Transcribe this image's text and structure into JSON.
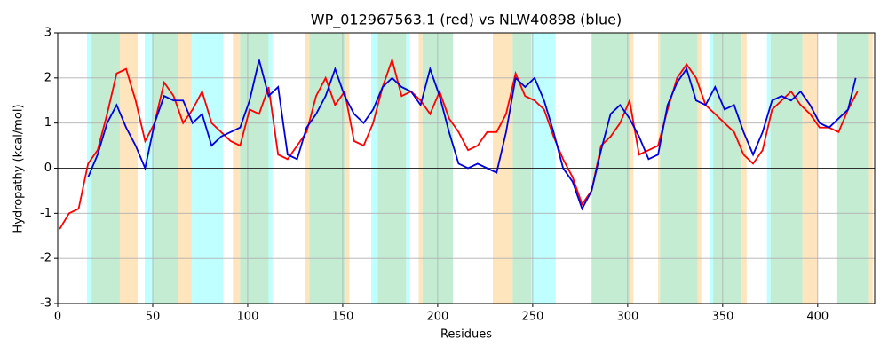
{
  "chart_data": {
    "type": "line",
    "title": "WP_012967563.1 (red) vs NLW40898 (blue)",
    "xlabel": "Residues",
    "ylabel": "Hydropathy (kcal/mol)",
    "xlim": [
      0,
      430
    ],
    "ylim": [
      -3,
      3
    ],
    "xticks": [
      0,
      50,
      100,
      150,
      200,
      250,
      300,
      350,
      400
    ],
    "yticks": [
      -3,
      -2,
      -1,
      0,
      1,
      2,
      3
    ],
    "grid": true,
    "spans": [
      {
        "start": 15.4,
        "end": 17.8,
        "color": "#bfffff"
      },
      {
        "start": 17.8,
        "end": 32.7,
        "color": "#c3ecd2"
      },
      {
        "start": 32.7,
        "end": 42.1,
        "color": "#ffe5bd"
      },
      {
        "start": 45.8,
        "end": 50,
        "color": "#bfffff"
      },
      {
        "start": 50,
        "end": 63.2,
        "color": "#c3ecd2"
      },
      {
        "start": 63.2,
        "end": 70.6,
        "color": "#ffe5bd"
      },
      {
        "start": 70.6,
        "end": 87,
        "color": "#bfffff"
      },
      {
        "start": 92.2,
        "end": 96,
        "color": "#ffe5bd"
      },
      {
        "start": 96,
        "end": 111,
        "color": "#c3ecd2"
      },
      {
        "start": 111,
        "end": 113,
        "color": "#bfffff"
      },
      {
        "start": 130,
        "end": 132.4,
        "color": "#ffe5bd"
      },
      {
        "start": 132.4,
        "end": 151,
        "color": "#c3ecd2"
      },
      {
        "start": 151,
        "end": 153.5,
        "color": "#ffe5bd"
      },
      {
        "start": 165,
        "end": 168.4,
        "color": "#bfffff"
      },
      {
        "start": 168.4,
        "end": 183.4,
        "color": "#c3ecd2"
      },
      {
        "start": 183.4,
        "end": 185.3,
        "color": "#bfffff"
      },
      {
        "start": 190,
        "end": 192,
        "color": "#ffe5bd"
      },
      {
        "start": 192,
        "end": 208,
        "color": "#c3ecd2"
      },
      {
        "start": 229,
        "end": 239.5,
        "color": "#ffe5bd"
      },
      {
        "start": 239.5,
        "end": 249.3,
        "color": "#c3ecd2"
      },
      {
        "start": 249.3,
        "end": 262,
        "color": "#bfffff"
      },
      {
        "start": 281,
        "end": 301,
        "color": "#c3ecd2"
      },
      {
        "start": 301,
        "end": 303,
        "color": "#ffe5bd"
      },
      {
        "start": 316,
        "end": 317,
        "color": "#ffe5bd"
      },
      {
        "start": 317,
        "end": 336.8,
        "color": "#c3ecd2"
      },
      {
        "start": 336.8,
        "end": 338.7,
        "color": "#ffe5bd"
      },
      {
        "start": 343,
        "end": 345,
        "color": "#bfffff"
      },
      {
        "start": 345,
        "end": 360,
        "color": "#c3ecd2"
      },
      {
        "start": 360,
        "end": 362.6,
        "color": "#ffe5bd"
      },
      {
        "start": 373.3,
        "end": 375.2,
        "color": "#bfffff"
      },
      {
        "start": 375.2,
        "end": 392,
        "color": "#c3ecd2"
      },
      {
        "start": 392,
        "end": 400,
        "color": "#ffe5bd"
      },
      {
        "start": 410.3,
        "end": 427,
        "color": "#c3ecd2"
      },
      {
        "start": 427,
        "end": 429,
        "color": "#ffe5bd"
      }
    ],
    "series": [
      {
        "color": "#ff0000",
        "x": [
          1,
          6,
          11,
          16,
          21,
          26,
          31,
          36,
          41,
          46,
          51,
          56,
          61,
          66,
          71,
          76,
          81,
          86,
          91,
          96,
          101,
          106,
          111,
          116,
          121,
          126,
          131,
          136,
          141,
          146,
          151,
          156,
          161,
          166,
          171,
          176,
          181,
          186,
          191,
          196,
          201,
          206,
          211,
          216,
          221,
          226,
          231,
          236,
          241,
          246,
          251,
          256,
          261,
          266,
          271,
          276,
          281,
          286,
          291,
          296,
          301,
          306,
          311,
          316,
          321,
          326,
          331,
          336,
          341,
          346,
          351,
          356,
          361,
          366,
          371,
          376,
          381,
          386,
          391,
          396,
          401,
          406,
          411,
          416,
          421
        ],
        "values": [
          -1.35,
          -1.0,
          -0.9,
          0.1,
          0.4,
          1.2,
          2.1,
          2.2,
          1.5,
          0.6,
          1.0,
          1.9,
          1.6,
          1.0,
          1.3,
          1.7,
          1.0,
          0.8,
          0.6,
          0.5,
          1.3,
          1.2,
          1.8,
          0.3,
          0.2,
          0.5,
          0.8,
          1.6,
          2.0,
          1.4,
          1.7,
          0.6,
          0.5,
          1.0,
          1.8,
          2.4,
          1.6,
          1.7,
          1.5,
          1.2,
          1.7,
          1.1,
          0.8,
          0.4,
          0.5,
          0.8,
          0.8,
          1.2,
          2.1,
          1.6,
          1.5,
          1.3,
          0.7,
          0.2,
          -0.2,
          -0.8,
          -0.5,
          0.5,
          0.7,
          1.0,
          1.5,
          0.3,
          0.4,
          0.5,
          1.3,
          2.0,
          2.3,
          2.0,
          1.4,
          1.2,
          1.0,
          0.8,
          0.3,
          0.1,
          0.4,
          1.3,
          1.5,
          1.7,
          1.4,
          1.2,
          0.9,
          0.9,
          0.8,
          1.3,
          1.7
        ]
      },
      {
        "color": "#0000dd",
        "x": [
          16,
          21,
          26,
          31,
          36,
          41,
          46,
          51,
          56,
          61,
          66,
          71,
          76,
          81,
          86,
          91,
          96,
          101,
          106,
          111,
          116,
          121,
          126,
          131,
          136,
          141,
          146,
          151,
          156,
          161,
          166,
          171,
          176,
          181,
          186,
          191,
          196,
          201,
          206,
          211,
          216,
          221,
          226,
          231,
          236,
          241,
          246,
          251,
          256,
          261,
          266,
          271,
          276,
          281,
          286,
          291,
          296,
          301,
          306,
          311,
          316,
          321,
          326,
          331,
          336,
          341,
          346,
          351,
          356,
          361,
          366,
          371,
          376,
          381,
          386,
          391,
          396,
          401,
          406,
          411,
          416,
          420
        ],
        "values": [
          -0.2,
          0.3,
          1.0,
          1.4,
          0.9,
          0.5,
          0.0,
          1.0,
          1.6,
          1.5,
          1.5,
          1.0,
          1.2,
          0.5,
          0.7,
          0.8,
          0.9,
          1.5,
          2.4,
          1.6,
          1.8,
          0.3,
          0.2,
          0.9,
          1.2,
          1.6,
          2.2,
          1.6,
          1.2,
          1.0,
          1.3,
          1.8,
          2.0,
          1.8,
          1.7,
          1.4,
          2.2,
          1.6,
          0.8,
          0.1,
          0.0,
          0.1,
          0.0,
          -0.1,
          0.8,
          2.0,
          1.8,
          2.0,
          1.5,
          0.8,
          0.0,
          -0.3,
          -0.9,
          -0.5,
          0.4,
          1.2,
          1.4,
          1.1,
          0.7,
          0.2,
          0.3,
          1.4,
          1.9,
          2.2,
          1.5,
          1.4,
          1.8,
          1.3,
          1.4,
          0.8,
          0.3,
          0.8,
          1.5,
          1.6,
          1.5,
          1.7,
          1.4,
          1.0,
          0.9,
          1.1,
          1.3,
          2.0
        ]
      }
    ]
  }
}
